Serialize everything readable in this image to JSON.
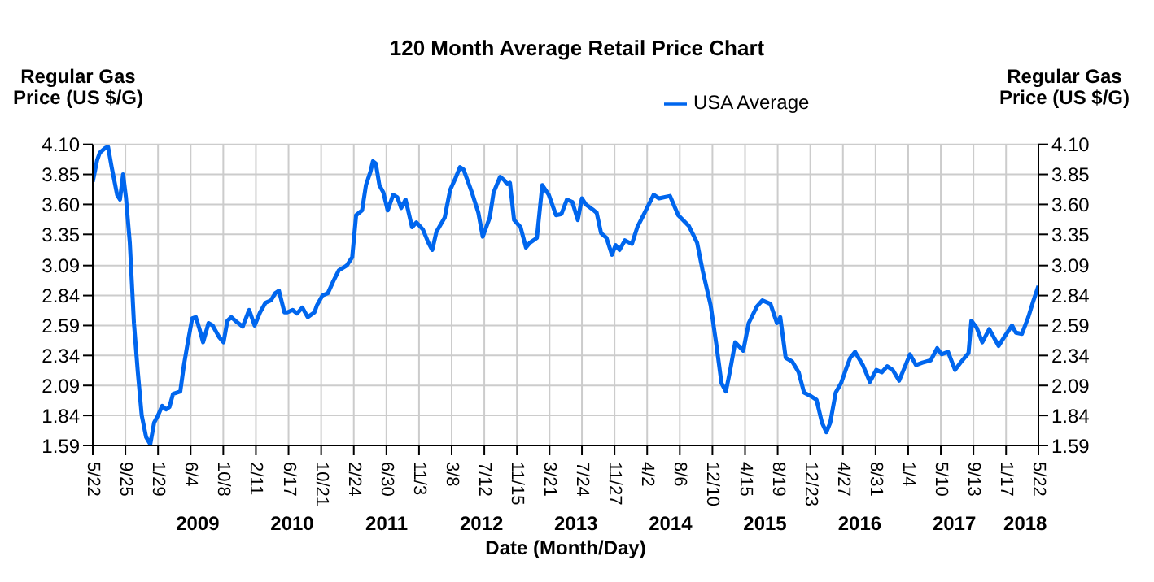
{
  "chart_data": {
    "type": "line",
    "title": "120 Month Average Retail Price Chart",
    "xlabel": "Date (Month/Day)",
    "ylabel": "Regular Gas Price (US $/G)",
    "y2label": "Regular Gas Price (US $/G)",
    "legend": "top right",
    "grid": true,
    "marker": "none",
    "line_style": "solid",
    "x": [
      "2008-05-22",
      "2008-06-08",
      "2008-06-18",
      "2008-07-09",
      "2008-07-20",
      "2008-08-03",
      "2008-08-24",
      "2008-09-04",
      "2008-09-16",
      "2008-09-27",
      "2008-10-12",
      "2008-10-28",
      "2008-11-12",
      "2008-11-27",
      "2008-12-14",
      "2008-12-30",
      "2009-01-14",
      "2009-01-29",
      "2009-02-14",
      "2009-03-01",
      "2009-03-14",
      "2009-03-28",
      "2009-04-25",
      "2009-05-09",
      "2009-05-24",
      "2009-06-10",
      "2009-06-24",
      "2009-07-07",
      "2009-07-22",
      "2009-08-12",
      "2009-08-28",
      "2009-09-23",
      "2009-10-09",
      "2009-10-24",
      "2009-11-08",
      "2009-11-29",
      "2009-12-22",
      "2010-01-16",
      "2010-02-06",
      "2010-02-27",
      "2010-03-20",
      "2010-04-10",
      "2010-04-27",
      "2010-05-11",
      "2010-06-01",
      "2010-06-12",
      "2010-07-03",
      "2010-07-20",
      "2010-08-09",
      "2010-08-30",
      "2010-09-25",
      "2010-10-05",
      "2010-10-26",
      "2010-11-16",
      "2010-12-07",
      "2010-12-28",
      "2011-01-28",
      "2011-02-18",
      "2011-03-05",
      "2011-03-28",
      "2011-04-12",
      "2011-04-29",
      "2011-05-09",
      "2011-05-20",
      "2011-06-03",
      "2011-06-18",
      "2011-07-05",
      "2011-07-26",
      "2011-08-11",
      "2011-08-26",
      "2011-09-12",
      "2011-10-07",
      "2011-10-24",
      "2011-11-18",
      "2011-12-09",
      "2011-12-24",
      "2012-01-09",
      "2012-02-10",
      "2012-03-02",
      "2012-03-23",
      "2012-04-09",
      "2012-04-23",
      "2012-05-25",
      "2012-06-19",
      "2012-07-06",
      "2012-08-02",
      "2012-08-17",
      "2012-09-11",
      "2012-09-28",
      "2012-10-08",
      "2012-10-19",
      "2012-11-04",
      "2012-11-29",
      "2012-12-20",
      "2013-01-04",
      "2013-01-31",
      "2013-02-21",
      "2013-03-18",
      "2013-04-15",
      "2013-05-06",
      "2013-05-27",
      "2013-06-17",
      "2013-07-08",
      "2013-07-24",
      "2013-08-08",
      "2013-09-08",
      "2013-09-19",
      "2013-10-06",
      "2013-10-27",
      "2013-11-17",
      "2013-12-01",
      "2013-12-16",
      "2014-01-06",
      "2014-02-02",
      "2014-02-23",
      "2014-03-23",
      "2014-04-27",
      "2014-05-18",
      "2014-06-29",
      "2014-07-31",
      "2014-09-10",
      "2014-10-12",
      "2014-11-02",
      "2014-12-03",
      "2014-12-24",
      "2015-01-14",
      "2015-01-31",
      "2015-02-15",
      "2015-03-08",
      "2015-04-08",
      "2015-04-29",
      "2015-05-31",
      "2015-06-21",
      "2015-07-22",
      "2015-08-16",
      "2015-08-29",
      "2015-09-19",
      "2015-10-14",
      "2015-11-08",
      "2015-11-29",
      "2015-12-26",
      "2016-01-16",
      "2016-02-06",
      "2016-02-23",
      "2016-03-09",
      "2016-03-30",
      "2016-04-20",
      "2016-05-11",
      "2016-05-25",
      "2016-06-13",
      "2016-07-13",
      "2016-08-09",
      "2016-09-03",
      "2016-09-24",
      "2016-10-15",
      "2016-11-05",
      "2016-11-30",
      "2016-12-23",
      "2017-01-11",
      "2017-02-03",
      "2017-02-28",
      "2017-04-01",
      "2017-04-26",
      "2017-05-13",
      "2017-06-07",
      "2017-07-04",
      "2017-07-25",
      "2017-08-25",
      "2017-09-05",
      "2017-09-26",
      "2017-10-17",
      "2017-11-13",
      "2017-12-19",
      "2018-01-09",
      "2018-02-09",
      "2018-02-24",
      "2018-03-19",
      "2018-04-13",
      "2018-04-30",
      "2018-05-22"
    ],
    "series": [
      {
        "name": "USA Average",
        "color": "#0066ee",
        "values": [
          3.79,
          3.97,
          4.03,
          4.07,
          4.08,
          3.91,
          3.68,
          3.64,
          3.85,
          3.66,
          3.28,
          2.61,
          2.2,
          1.84,
          1.66,
          1.6,
          1.78,
          1.84,
          1.92,
          1.89,
          1.91,
          2.02,
          2.04,
          2.26,
          2.45,
          2.65,
          2.66,
          2.57,
          2.45,
          2.61,
          2.59,
          2.49,
          2.45,
          2.63,
          2.66,
          2.62,
          2.58,
          2.72,
          2.59,
          2.7,
          2.78,
          2.8,
          2.86,
          2.88,
          2.7,
          2.7,
          2.72,
          2.69,
          2.74,
          2.66,
          2.7,
          2.76,
          2.84,
          2.86,
          2.96,
          3.05,
          3.09,
          3.16,
          3.51,
          3.55,
          3.76,
          3.87,
          3.96,
          3.94,
          3.76,
          3.7,
          3.55,
          3.68,
          3.66,
          3.57,
          3.64,
          3.41,
          3.45,
          3.39,
          3.28,
          3.22,
          3.37,
          3.49,
          3.72,
          3.82,
          3.91,
          3.89,
          3.7,
          3.53,
          3.33,
          3.49,
          3.7,
          3.83,
          3.8,
          3.77,
          3.78,
          3.47,
          3.41,
          3.24,
          3.28,
          3.32,
          3.76,
          3.68,
          3.51,
          3.52,
          3.64,
          3.62,
          3.47,
          3.65,
          3.6,
          3.55,
          3.53,
          3.36,
          3.32,
          3.18,
          3.26,
          3.22,
          3.3,
          3.27,
          3.41,
          3.53,
          3.68,
          3.65,
          3.67,
          3.51,
          3.42,
          3.28,
          3.05,
          2.76,
          2.45,
          2.11,
          2.04,
          2.2,
          2.45,
          2.38,
          2.61,
          2.75,
          2.8,
          2.77,
          2.61,
          2.66,
          2.32,
          2.29,
          2.2,
          2.03,
          2.0,
          1.97,
          1.78,
          1.7,
          1.78,
          2.03,
          2.11,
          2.24,
          2.32,
          2.37,
          2.26,
          2.12,
          2.22,
          2.2,
          2.25,
          2.22,
          2.13,
          2.25,
          2.35,
          2.26,
          2.28,
          2.3,
          2.4,
          2.35,
          2.37,
          2.22,
          2.28,
          2.36,
          2.63,
          2.57,
          2.45,
          2.56,
          2.42,
          2.49,
          2.59,
          2.53,
          2.52,
          2.66,
          2.78,
          2.92
        ]
      }
    ],
    "xlim": [
      "2008-05-22",
      "2018-05-22"
    ],
    "xticks": [
      {
        "value": "2008-05-22",
        "label": "5/22"
      },
      {
        "value": "2008-09-25",
        "label": "9/25"
      },
      {
        "value": "2009-01-29",
        "label": "1/29"
      },
      {
        "value": "2009-06-04",
        "label": "6/4"
      },
      {
        "value": "2009-10-08",
        "label": "10/8"
      },
      {
        "value": "2010-02-11",
        "label": "2/11"
      },
      {
        "value": "2010-06-17",
        "label": "6/17"
      },
      {
        "value": "2010-10-21",
        "label": "10/21"
      },
      {
        "value": "2011-02-24",
        "label": "2/24"
      },
      {
        "value": "2011-06-30",
        "label": "6/30"
      },
      {
        "value": "2011-11-03",
        "label": "11/3"
      },
      {
        "value": "2012-03-08",
        "label": "3/8"
      },
      {
        "value": "2012-07-12",
        "label": "7/12"
      },
      {
        "value": "2012-11-15",
        "label": "11/15"
      },
      {
        "value": "2013-03-21",
        "label": "3/21"
      },
      {
        "value": "2013-07-24",
        "label": "7/24"
      },
      {
        "value": "2013-11-27",
        "label": "11/27"
      },
      {
        "value": "2014-04-02",
        "label": "4/2"
      },
      {
        "value": "2014-08-06",
        "label": "8/6"
      },
      {
        "value": "2014-12-10",
        "label": "12/10"
      },
      {
        "value": "2015-04-15",
        "label": "4/15"
      },
      {
        "value": "2015-08-19",
        "label": "8/19"
      },
      {
        "value": "2015-12-23",
        "label": "12/23"
      },
      {
        "value": "2016-04-27",
        "label": "4/27"
      },
      {
        "value": "2016-08-31",
        "label": "8/31"
      },
      {
        "value": "2017-01-04",
        "label": "1/4"
      },
      {
        "value": "2017-05-10",
        "label": "5/10"
      },
      {
        "value": "2017-09-13",
        "label": "9/13"
      },
      {
        "value": "2018-01-17",
        "label": "1/17"
      },
      {
        "value": "2018-05-22",
        "label": "5/22"
      }
    ],
    "x2lim": [
      "2008-05-22",
      "2018-05-22"
    ],
    "x2ticks": [
      {
        "value": "2009-07-01",
        "label": "2009"
      },
      {
        "value": "2010-07-01",
        "label": "2010"
      },
      {
        "value": "2011-07-01",
        "label": "2011"
      },
      {
        "value": "2012-07-01",
        "label": "2012"
      },
      {
        "value": "2013-07-01",
        "label": "2013"
      },
      {
        "value": "2014-07-01",
        "label": "2014"
      },
      {
        "value": "2015-07-01",
        "label": "2015"
      },
      {
        "value": "2016-07-01",
        "label": "2016"
      },
      {
        "value": "2017-07-01",
        "label": "2017"
      },
      {
        "value": "2018-04-01",
        "label": "2018"
      }
    ],
    "ylim": [
      1.59,
      4.1
    ],
    "yticks": [
      1.59,
      1.84,
      2.09,
      2.34,
      2.59,
      2.84,
      3.09,
      3.35,
      {
        "value": 3.6,
        "label": "3.60"
      },
      3.85,
      {
        "value": 4.1,
        "label": "4.10"
      }
    ],
    "y2lim": [
      1.59,
      4.1
    ],
    "y2ticks": [
      1.59,
      1.84,
      2.09,
      2.34,
      2.59,
      2.84,
      3.09,
      3.35,
      {
        "value": 3.6,
        "label": "3.60"
      },
      3.85,
      {
        "value": 4.1,
        "label": "4.10"
      }
    ]
  }
}
